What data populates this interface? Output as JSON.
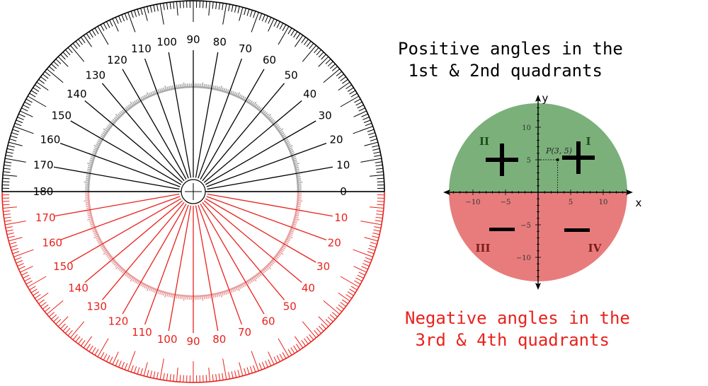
{
  "protractor": {
    "upper_labels": [
      "0",
      "10",
      "20",
      "30",
      "40",
      "50",
      "60",
      "70",
      "80",
      "90",
      "100",
      "110",
      "120",
      "130",
      "140",
      "150",
      "160",
      "170",
      "180"
    ],
    "lower_labels": [
      "10",
      "20",
      "30",
      "40",
      "50",
      "60",
      "70",
      "80",
      "90",
      "100",
      "110",
      "120",
      "130",
      "140",
      "150",
      "160",
      "170"
    ],
    "colors": {
      "upper": "#000000",
      "lower": "#e8221c",
      "inner_ring": "#aaaaaa",
      "inner_ring_lower": "#e8a0a0"
    }
  },
  "caption_positive": {
    "line1": "Positive angles in the",
    "line2": " 1st & 2nd quadrants"
  },
  "caption_negative": {
    "line1": "Negative angles in the",
    "line2": " 3rd & 4th quadrants",
    "color": "#e8221c"
  },
  "quadrant_diagram": {
    "x_axis_label": "x",
    "y_axis_label": "y",
    "x_ticks": [
      "−10",
      "−5",
      "5",
      "10"
    ],
    "y_ticks": [
      "10",
      "5",
      "−5",
      "−10"
    ],
    "point_label": "P(3, 5)",
    "quadrants": {
      "I": "I",
      "II": "II",
      "III": "III",
      "IV": "IV"
    },
    "colors": {
      "upper_fill": "#7bb07b",
      "lower_fill": "#e87c7c",
      "roman_upper": "#1d4d1d",
      "roman_lower": "#7a1b1b"
    }
  }
}
